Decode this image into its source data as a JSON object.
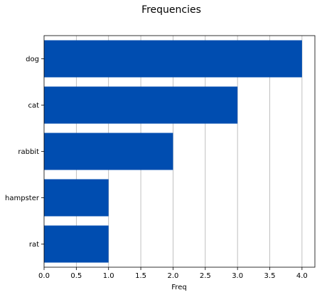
{
  "chart_data": {
    "type": "bar",
    "orientation": "horizontal",
    "title": "Frequencies",
    "xlabel": "Freq",
    "ylabel": "",
    "categories": [
      "dog",
      "cat",
      "rabbit",
      "hampster",
      "rat"
    ],
    "values": [
      4,
      3,
      2,
      1,
      1
    ],
    "xlim": [
      0,
      4.2
    ],
    "xticks": [
      "0.0",
      "0.5",
      "1.0",
      "1.5",
      "2.0",
      "2.5",
      "3.0",
      "3.5",
      "4.0"
    ],
    "grid": "x",
    "bar_color": "#004db0"
  }
}
